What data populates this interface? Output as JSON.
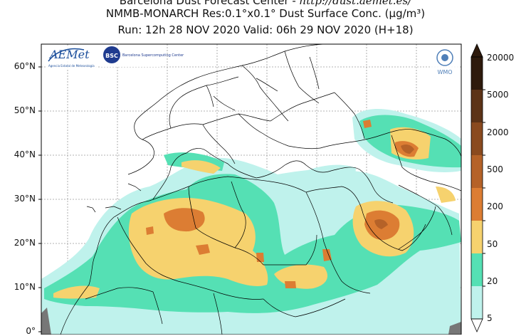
{
  "header": {
    "line1_prefix": "Barcelona Dust Forecast Center - ",
    "line1_url": "http://dust.aemet.es/",
    "line2": "NMMB-MONARCH   Res:0.1°x0.1°   Dust Surface Conc. (µg/m³)",
    "line3": "Run: 12h 28 NOV 2020   Valid: 06h 29 NOV 2020 (H+18)"
  },
  "map": {
    "lat_labels": [
      "60°N",
      "50°N",
      "40°N",
      "30°N",
      "20°N",
      "10°N",
      "0°"
    ]
  },
  "logos": {
    "aemet": "AEMet",
    "aemet_sub": "Agencia Estatal de Meteorología",
    "bsc": "BSC",
    "bsc_sub": "Barcelona Supercomputing Center",
    "wmo": "WMO"
  },
  "colorbar": {
    "levels": [
      "5",
      "20",
      "50",
      "200",
      "500",
      "2000",
      "5000",
      "20000"
    ],
    "colors": [
      "#bff2ec",
      "#55e0b4",
      "#f6d26e",
      "#dc7d33",
      "#b56228",
      "#8a4a1f",
      "#5c3317",
      "#2e1a0c"
    ]
  }
}
